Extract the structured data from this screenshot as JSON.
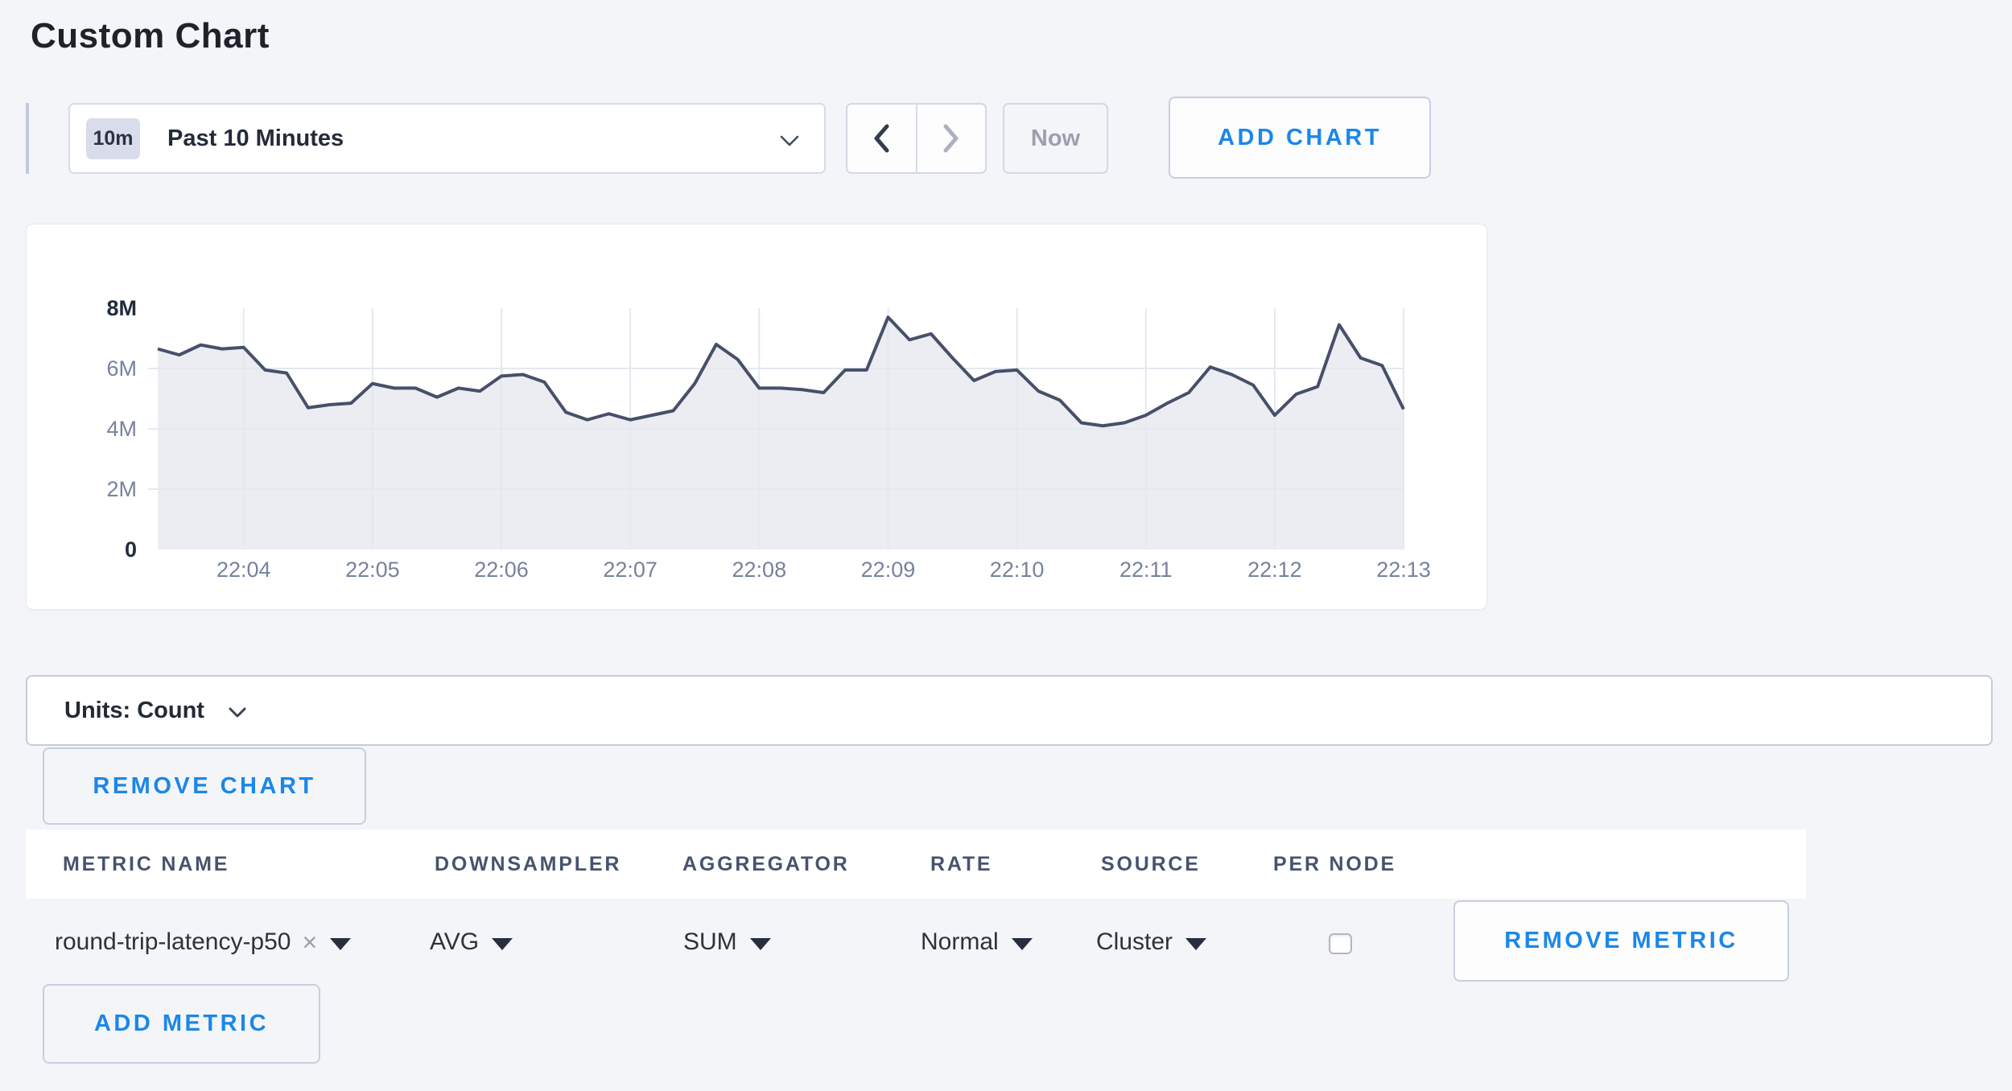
{
  "page": {
    "title": "Custom Chart",
    "background": "#f4f5f9"
  },
  "toolbar": {
    "time_window": {
      "badge": "10m",
      "label": "Past 10 Minutes",
      "dropdown_icon": "chevron-down-icon"
    },
    "back_icon": "chevron-left-icon",
    "forward_icon": "chevron-right-icon",
    "now_label": "Now",
    "add_chart_label": "ADD CHART"
  },
  "units_bar": {
    "label": "Units: Count",
    "dropdown_icon": "chevron-down-icon"
  },
  "chart_actions": {
    "remove_chart_label": "REMOVE CHART",
    "add_metric_label": "ADD METRIC"
  },
  "metrics_table": {
    "columns": [
      "METRIC NAME",
      "DOWNSAMPLER",
      "AGGREGATOR",
      "RATE",
      "SOURCE",
      "PER NODE"
    ],
    "rows": [
      {
        "metric_name": "round-trip-latency-p50",
        "clear_icon": "x-clear-icon",
        "downsampler": "AVG",
        "aggregator": "SUM",
        "rate": "Normal",
        "source": "Cluster",
        "per_node_checked": false,
        "remove_label": "REMOVE METRIC"
      }
    ]
  },
  "chart_data": {
    "type": "area",
    "title": "",
    "xlabel": "",
    "ylabel": "",
    "unit": "Count",
    "ylim_millions": [
      0,
      8
    ],
    "y_tick_labels": [
      "0",
      "2M",
      "4M",
      "6M",
      "8M"
    ],
    "y_tick_values_millions": [
      0,
      2,
      4,
      6,
      8
    ],
    "x_tick_labels": [
      "22:04",
      "22:05",
      "22:06",
      "22:07",
      "22:08",
      "22:09",
      "22:10",
      "22:11",
      "22:12",
      "22:13"
    ],
    "start_time": "22:03:20",
    "end_time": "22:13:00",
    "interval_seconds": 10,
    "grid": true,
    "legend": false,
    "line_color": "#475069",
    "fill_color": "#ebedf2",
    "grid_color": "#e4e8f0",
    "axis_label_color": "#76829e",
    "axis_label_bold_color": "#232c3e",
    "times": [
      "22:03:20",
      "22:03:30",
      "22:03:40",
      "22:03:50",
      "22:04:00",
      "22:04:10",
      "22:04:20",
      "22:04:30",
      "22:04:40",
      "22:04:50",
      "22:05:00",
      "22:05:10",
      "22:05:20",
      "22:05:30",
      "22:05:40",
      "22:05:50",
      "22:06:00",
      "22:06:10",
      "22:06:20",
      "22:06:30",
      "22:06:40",
      "22:06:50",
      "22:07:00",
      "22:07:10",
      "22:07:20",
      "22:07:30",
      "22:07:40",
      "22:07:50",
      "22:08:00",
      "22:08:10",
      "22:08:20",
      "22:08:30",
      "22:08:40",
      "22:08:50",
      "22:09:00",
      "22:09:10",
      "22:09:20",
      "22:09:30",
      "22:09:40",
      "22:09:50",
      "22:10:00",
      "22:10:10",
      "22:10:20",
      "22:10:30",
      "22:10:40",
      "22:10:50",
      "22:11:00",
      "22:11:10",
      "22:11:20",
      "22:11:30",
      "22:11:40",
      "22:11:50",
      "22:12:00",
      "22:12:10",
      "22:12:20",
      "22:12:30",
      "22:12:40",
      "22:12:50",
      "22:13:00"
    ],
    "values_millions": [
      6.65,
      6.45,
      6.78,
      6.65,
      6.7,
      5.95,
      5.85,
      4.7,
      4.8,
      4.85,
      5.5,
      5.35,
      5.35,
      5.05,
      5.35,
      5.25,
      5.75,
      5.8,
      5.55,
      4.55,
      4.3,
      4.5,
      4.3,
      4.45,
      4.6,
      5.5,
      6.8,
      6.3,
      5.35,
      5.35,
      5.3,
      5.2,
      5.95,
      5.95,
      7.7,
      6.95,
      7.15,
      6.35,
      5.6,
      5.9,
      5.95,
      5.25,
      4.95,
      4.2,
      4.1,
      4.2,
      4.45,
      4.85,
      5.2,
      6.05,
      5.8,
      5.45,
      4.45,
      5.15,
      5.4,
      7.45,
      6.35,
      6.1,
      4.65
    ]
  }
}
